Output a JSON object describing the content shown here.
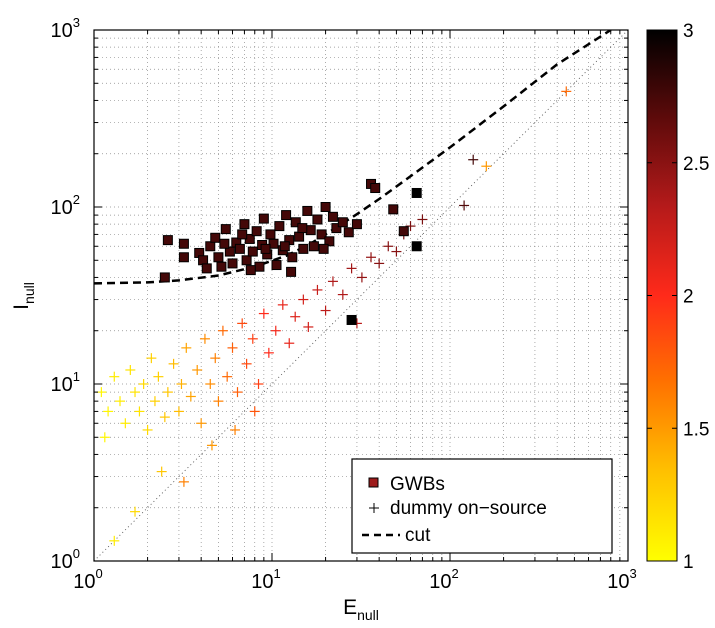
{
  "chart_data": {
    "type": "scatter",
    "xlabel": {
      "main": "E",
      "sub": "null"
    },
    "ylabel": {
      "main": "I",
      "sub": "null"
    },
    "xscale": "log",
    "yscale": "log",
    "xlim": [
      1,
      1000
    ],
    "ylim": [
      1,
      1000
    ],
    "grid": true,
    "x_ticks": [
      {
        "value": 1,
        "base": "10",
        "exp": "0"
      },
      {
        "value": 10,
        "base": "10",
        "exp": "1"
      },
      {
        "value": 100,
        "base": "10",
        "exp": "2"
      },
      {
        "value": 1000,
        "base": "10",
        "exp": "3"
      }
    ],
    "y_ticks": [
      {
        "value": 1,
        "base": "10",
        "exp": "0"
      },
      {
        "value": 10,
        "base": "10",
        "exp": "1"
      },
      {
        "value": 100,
        "base": "10",
        "exp": "2"
      },
      {
        "value": 1000,
        "base": "10",
        "exp": "3"
      }
    ],
    "legend": {
      "placement": "bottom-right",
      "entries": [
        "GWBs",
        "dummy on−source",
        "cut"
      ]
    },
    "colorbar": {
      "range": [
        1,
        3
      ],
      "ticks": [
        "1",
        "1.5",
        "2",
        "2.5",
        "3"
      ],
      "colormap": [
        "#ffff00",
        "#ffc000",
        "#ff7000",
        "#ff2a1a",
        "#b41a1a",
        "#5a0a0a",
        "#000000"
      ]
    },
    "cut_curve": {
      "x": [
        1,
        2,
        3,
        5,
        8,
        12,
        16,
        20,
        25,
        30,
        40,
        60,
        100,
        200,
        400,
        800
      ],
      "y": [
        37,
        37.5,
        38.5,
        41,
        46,
        53,
        61,
        70,
        81,
        91,
        111,
        149,
        217,
        370,
        640,
        1000
      ]
    },
    "series": [
      {
        "name": "GWBs",
        "marker": "square",
        "points": [
          {
            "x": 2.5,
            "y": 40,
            "c": 2.75
          },
          {
            "x": 3.2,
            "y": 52,
            "c": 2.75
          },
          {
            "x": 2.6,
            "y": 65,
            "c": 2.75
          },
          {
            "x": 3.2,
            "y": 62,
            "c": 2.75
          },
          {
            "x": 3.9,
            "y": 55,
            "c": 2.75
          },
          {
            "x": 4.1,
            "y": 50,
            "c": 2.75
          },
          {
            "x": 4.3,
            "y": 45,
            "c": 2.75
          },
          {
            "x": 4.5,
            "y": 60,
            "c": 2.75
          },
          {
            "x": 4.8,
            "y": 67,
            "c": 2.75
          },
          {
            "x": 5.0,
            "y": 52,
            "c": 2.75
          },
          {
            "x": 5.2,
            "y": 46,
            "c": 2.75
          },
          {
            "x": 5.5,
            "y": 75,
            "c": 2.75
          },
          {
            "x": 5.8,
            "y": 56,
            "c": 2.75
          },
          {
            "x": 6.0,
            "y": 48,
            "c": 2.75
          },
          {
            "x": 6.3,
            "y": 63,
            "c": 2.75
          },
          {
            "x": 6.6,
            "y": 58,
            "c": 2.75
          },
          {
            "x": 7.0,
            "y": 80,
            "c": 2.75
          },
          {
            "x": 7.2,
            "y": 50,
            "c": 2.75
          },
          {
            "x": 7.5,
            "y": 66,
            "c": 2.75
          },
          {
            "x": 7.8,
            "y": 56,
            "c": 2.75
          },
          {
            "x": 8.2,
            "y": 73,
            "c": 2.75
          },
          {
            "x": 8.5,
            "y": 46,
            "c": 2.75
          },
          {
            "x": 8.8,
            "y": 61,
            "c": 2.75
          },
          {
            "x": 9.0,
            "y": 86,
            "c": 2.75
          },
          {
            "x": 9.4,
            "y": 54,
            "c": 2.75
          },
          {
            "x": 9.8,
            "y": 70,
            "c": 2.75
          },
          {
            "x": 10.2,
            "y": 62,
            "c": 2.75
          },
          {
            "x": 10.6,
            "y": 47,
            "c": 2.75
          },
          {
            "x": 11.0,
            "y": 78,
            "c": 2.75
          },
          {
            "x": 11.5,
            "y": 57,
            "c": 2.75
          },
          {
            "x": 12.0,
            "y": 90,
            "c": 2.75
          },
          {
            "x": 12.5,
            "y": 65,
            "c": 2.75
          },
          {
            "x": 13.0,
            "y": 52,
            "c": 2.75
          },
          {
            "x": 13.6,
            "y": 82,
            "c": 2.75
          },
          {
            "x": 14.2,
            "y": 68,
            "c": 2.75
          },
          {
            "x": 15.0,
            "y": 58,
            "c": 2.75
          },
          {
            "x": 15.8,
            "y": 95,
            "c": 2.75
          },
          {
            "x": 16.5,
            "y": 74,
            "c": 2.75
          },
          {
            "x": 17.2,
            "y": 60,
            "c": 2.75
          },
          {
            "x": 18.0,
            "y": 85,
            "c": 2.75
          },
          {
            "x": 19.0,
            "y": 70,
            "c": 2.75
          },
          {
            "x": 20.0,
            "y": 100,
            "c": 2.75
          },
          {
            "x": 21.0,
            "y": 64,
            "c": 2.75
          },
          {
            "x": 22.0,
            "y": 88,
            "c": 2.75
          },
          {
            "x": 23.0,
            "y": 76,
            "c": 2.75
          },
          {
            "x": 25.0,
            "y": 82,
            "c": 2.75
          },
          {
            "x": 27.0,
            "y": 72,
            "c": 2.75
          },
          {
            "x": 30.0,
            "y": 80,
            "c": 2.75
          },
          {
            "x": 5.4,
            "y": 62,
            "c": 2.75
          },
          {
            "x": 6.8,
            "y": 70,
            "c": 2.75
          },
          {
            "x": 9.2,
            "y": 58,
            "c": 2.75
          },
          {
            "x": 11.8,
            "y": 60,
            "c": 2.75
          },
          {
            "x": 14.8,
            "y": 76,
            "c": 2.75
          },
          {
            "x": 19.5,
            "y": 58,
            "c": 2.75
          },
          {
            "x": 7.6,
            "y": 44,
            "c": 2.75
          },
          {
            "x": 12.8,
            "y": 43,
            "c": 2.75
          },
          {
            "x": 36,
            "y": 135,
            "c": 2.75
          },
          {
            "x": 38,
            "y": 128,
            "c": 2.75
          },
          {
            "x": 48,
            "y": 97,
            "c": 2.75
          },
          {
            "x": 55,
            "y": 73,
            "c": 2.75
          },
          {
            "x": 65,
            "y": 120,
            "c": 3.0
          },
          {
            "x": 65,
            "y": 60,
            "c": 3.0
          },
          {
            "x": 28,
            "y": 23,
            "c": 3.0
          }
        ]
      },
      {
        "name": "dummy on−source",
        "marker": "plus",
        "points": [
          {
            "x": 1.1,
            "y": 9,
            "c": 1.05
          },
          {
            "x": 1.2,
            "y": 7,
            "c": 1.05
          },
          {
            "x": 1.3,
            "y": 11,
            "c": 1.1
          },
          {
            "x": 1.15,
            "y": 5,
            "c": 1.05
          },
          {
            "x": 1.4,
            "y": 8,
            "c": 1.1
          },
          {
            "x": 1.5,
            "y": 6,
            "c": 1.1
          },
          {
            "x": 1.6,
            "y": 12,
            "c": 1.15
          },
          {
            "x": 1.7,
            "y": 9,
            "c": 1.15
          },
          {
            "x": 1.8,
            "y": 7,
            "c": 1.15
          },
          {
            "x": 1.9,
            "y": 10,
            "c": 1.2
          },
          {
            "x": 2.0,
            "y": 5.5,
            "c": 1.2
          },
          {
            "x": 2.1,
            "y": 14,
            "c": 1.25
          },
          {
            "x": 2.2,
            "y": 8,
            "c": 1.25
          },
          {
            "x": 2.3,
            "y": 11,
            "c": 1.25
          },
          {
            "x": 2.5,
            "y": 6.5,
            "c": 1.3
          },
          {
            "x": 2.6,
            "y": 9,
            "c": 1.3
          },
          {
            "x": 2.8,
            "y": 13,
            "c": 1.35
          },
          {
            "x": 3.0,
            "y": 7,
            "c": 1.35
          },
          {
            "x": 3.1,
            "y": 10,
            "c": 1.4
          },
          {
            "x": 3.3,
            "y": 16,
            "c": 1.45
          },
          {
            "x": 3.5,
            "y": 8.5,
            "c": 1.45
          },
          {
            "x": 3.8,
            "y": 12,
            "c": 1.5
          },
          {
            "x": 4.0,
            "y": 6,
            "c": 1.5
          },
          {
            "x": 4.2,
            "y": 18,
            "c": 1.55
          },
          {
            "x": 4.5,
            "y": 10,
            "c": 1.55
          },
          {
            "x": 4.8,
            "y": 14,
            "c": 1.6
          },
          {
            "x": 5.0,
            "y": 8,
            "c": 1.6
          },
          {
            "x": 5.3,
            "y": 20,
            "c": 1.7
          },
          {
            "x": 5.6,
            "y": 11,
            "c": 1.7
          },
          {
            "x": 6.0,
            "y": 16,
            "c": 1.75
          },
          {
            "x": 6.4,
            "y": 9,
            "c": 1.75
          },
          {
            "x": 6.8,
            "y": 22,
            "c": 1.85
          },
          {
            "x": 7.2,
            "y": 13,
            "c": 1.85
          },
          {
            "x": 7.8,
            "y": 18,
            "c": 1.9
          },
          {
            "x": 8.4,
            "y": 10,
            "c": 1.9
          },
          {
            "x": 9.0,
            "y": 25,
            "c": 2.0
          },
          {
            "x": 9.6,
            "y": 15,
            "c": 2.0
          },
          {
            "x": 10.5,
            "y": 20,
            "c": 2.05
          },
          {
            "x": 11.5,
            "y": 28,
            "c": 2.1
          },
          {
            "x": 12.5,
            "y": 17,
            "c": 2.1
          },
          {
            "x": 13.5,
            "y": 24,
            "c": 2.15
          },
          {
            "x": 15,
            "y": 30,
            "c": 2.2
          },
          {
            "x": 16,
            "y": 21,
            "c": 2.2
          },
          {
            "x": 18,
            "y": 34,
            "c": 2.25
          },
          {
            "x": 20,
            "y": 26,
            "c": 2.3
          },
          {
            "x": 22,
            "y": 38,
            "c": 2.35
          },
          {
            "x": 25,
            "y": 32,
            "c": 2.35
          },
          {
            "x": 28,
            "y": 45,
            "c": 2.4
          },
          {
            "x": 32,
            "y": 40,
            "c": 2.45
          },
          {
            "x": 36,
            "y": 52,
            "c": 2.45
          },
          {
            "x": 40,
            "y": 48,
            "c": 2.5
          },
          {
            "x": 45,
            "y": 60,
            "c": 2.5
          },
          {
            "x": 50,
            "y": 56,
            "c": 2.5
          },
          {
            "x": 55,
            "y": 70,
            "c": 2.55
          },
          {
            "x": 60,
            "y": 78,
            "c": 2.55
          },
          {
            "x": 70,
            "y": 85,
            "c": 2.55
          },
          {
            "x": 2.4,
            "y": 3.2,
            "c": 1.3
          },
          {
            "x": 3.2,
            "y": 2.8,
            "c": 1.6
          },
          {
            "x": 4.6,
            "y": 4.5,
            "c": 1.5
          },
          {
            "x": 1.3,
            "y": 1.3,
            "c": 1.1
          },
          {
            "x": 1.7,
            "y": 1.9,
            "c": 1.2
          },
          {
            "x": 6.2,
            "y": 5.5,
            "c": 1.6
          },
          {
            "x": 8.0,
            "y": 7.0,
            "c": 1.8
          },
          {
            "x": 30,
            "y": 22,
            "c": 2.3
          },
          {
            "x": 120,
            "y": 102,
            "c": 2.7
          },
          {
            "x": 135,
            "y": 185,
            "c": 2.75
          },
          {
            "x": 160,
            "y": 170,
            "c": 1.5
          },
          {
            "x": 450,
            "y": 450,
            "c": 1.7
          }
        ]
      }
    ]
  }
}
